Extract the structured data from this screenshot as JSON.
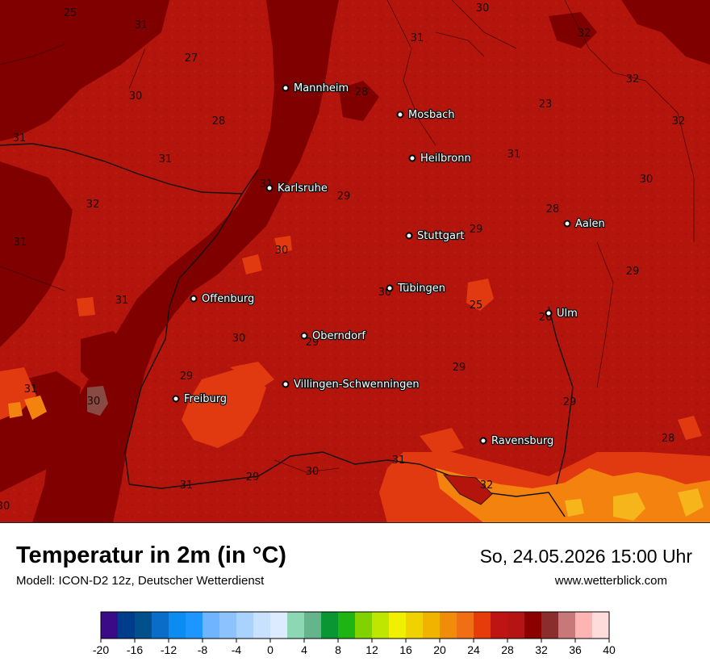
{
  "header": {
    "title": "Temperatur in 2m (in °C)",
    "subtitle": "Modell: ICON-D2 12z, Deutscher Wetterdienst",
    "datetime": "So, 24.05.2026 15:00 Uhr",
    "website": "www.wetterblick.com"
  },
  "colors": {
    "background_main": "#b3140c",
    "hot_zone": "#820000",
    "cooler_zone": "#e33b10",
    "coolest_zone": "#f6870f"
  },
  "cities": [
    {
      "name": "Mannheim"
    },
    {
      "name": "Mosbach"
    },
    {
      "name": "Heilbronn"
    },
    {
      "name": "Karlsruhe"
    },
    {
      "name": "Stuttgart"
    },
    {
      "name": "Aalen"
    },
    {
      "name": "Tübingen"
    },
    {
      "name": "Offenburg"
    },
    {
      "name": "Ulm"
    },
    {
      "name": "Oberndorf"
    },
    {
      "name": "Villingen-Schwenningen"
    },
    {
      "name": "Freiburg"
    },
    {
      "name": "Ravensburg"
    }
  ],
  "temperature_labels": [
    "25",
    "31",
    "27",
    "30",
    "28",
    "31",
    "31",
    "31",
    "32",
    "31",
    "30",
    "32",
    "31",
    "32",
    "23",
    "32",
    "28",
    "31",
    "30",
    "28",
    "29",
    "29",
    "30",
    "29",
    "30",
    "31",
    "25",
    "30",
    "26",
    "29",
    "29",
    "29",
    "31",
    "30",
    "29",
    "31",
    "28",
    "32",
    "30",
    "31",
    "30",
    "29"
  ],
  "legend": {
    "colors": [
      "#3a0a87",
      "#003c8c",
      "#00508c",
      "#0a6ec8",
      "#0a8cf0",
      "#1e96ff",
      "#6eb4ff",
      "#8cc3ff",
      "#aad2ff",
      "#c8e1ff",
      "#dcebff",
      "#8ed7b4",
      "#64b48c",
      "#0a9632",
      "#1eb414",
      "#82d200",
      "#bee600",
      "#f0f000",
      "#f0d200",
      "#f0b400",
      "#f08c0a",
      "#f06e14",
      "#e63c0a",
      "#be1414",
      "#b41414",
      "#8c0000",
      "#8c2d2d",
      "#c87878",
      "#ffb4b4",
      "#ffdcdc"
    ],
    "ticks": [
      "-20",
      "-16",
      "-12",
      "-8",
      "-4",
      "0",
      "4",
      "8",
      "12",
      "16",
      "20",
      "24",
      "28",
      "32",
      "36",
      "40"
    ],
    "min": -20,
    "max": 40
  }
}
